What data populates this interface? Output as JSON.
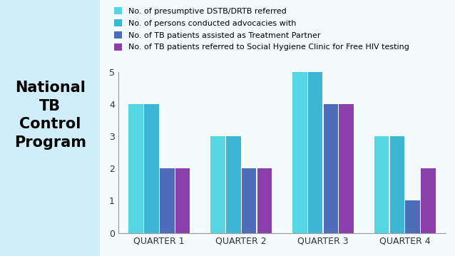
{
  "chart_data": {
    "type": "bar",
    "title": "National TB Control Program",
    "categories": [
      "QUARTER 1",
      "QUARTER 2",
      "QUARTER 3",
      "QUARTER 4"
    ],
    "series": [
      {
        "name": "No. of presumptive DSTB/DRTB referred",
        "color": "#56d6e3",
        "values": [
          4,
          3,
          5,
          3
        ]
      },
      {
        "name": "No. of persons conducted advocacies with",
        "color": "#3db6d6",
        "values": [
          4,
          3,
          5,
          3
        ]
      },
      {
        "name": "No. of TB patients assisted as Treatment Partner",
        "color": "#4e6db8",
        "values": [
          2,
          2,
          4,
          1
        ]
      },
      {
        "name": "No. of TB patients referred to Social Hygiene Clinic for Free HIV testing",
        "color": "#8a3faa",
        "values": [
          2,
          2,
          4,
          2
        ]
      }
    ],
    "ylim": [
      0,
      5
    ],
    "yticks": [
      0,
      1,
      2,
      3,
      4,
      5
    ],
    "grid": false,
    "legend": "upper left"
  }
}
